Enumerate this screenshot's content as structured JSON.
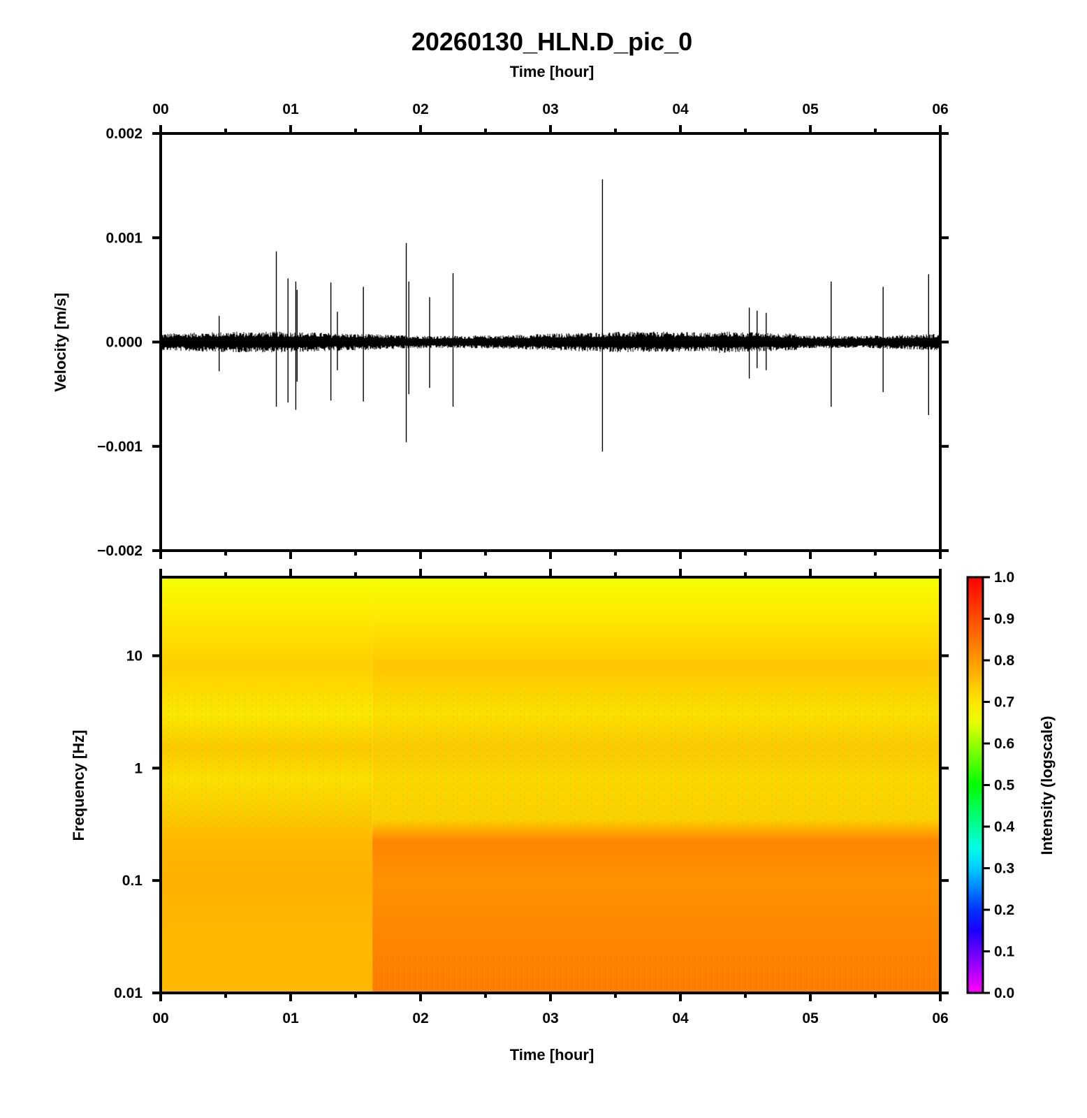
{
  "chart_data": [
    {
      "type": "line",
      "panel": "waveform",
      "title": "20260130_HLN.D_pic_0",
      "xlabel": "Time [hour]",
      "ylabel": "Velocity [m/s]",
      "xlim": [
        0,
        6
      ],
      "ylim": [
        -0.002,
        0.002
      ],
      "x_ticks": [
        "00",
        "01",
        "02",
        "03",
        "04",
        "05",
        "06"
      ],
      "y_ticks": [
        "0.002",
        "0.001",
        "0.000",
        "−0.001",
        "−0.002"
      ],
      "y_tick_values": [
        0.002,
        0.001,
        0.0,
        -0.001,
        -0.002
      ],
      "noise_amplitude": 7e-05,
      "series": [
        {
          "color": "#000000",
          "spikes": [
            {
              "x": 0.45,
              "max": 0.00025,
              "min": -0.00028
            },
            {
              "x": 0.89,
              "max": 0.00087,
              "min": -0.00062
            },
            {
              "x": 0.98,
              "max": 0.00061,
              "min": -0.00058
            },
            {
              "x": 1.04,
              "max": 0.00058,
              "min": -0.00065
            },
            {
              "x": 1.05,
              "max": 0.0005,
              "min": -0.00038
            },
            {
              "x": 1.31,
              "max": 0.00057,
              "min": -0.00056
            },
            {
              "x": 1.36,
              "max": 0.00029,
              "min": -0.00027
            },
            {
              "x": 1.56,
              "max": 0.00053,
              "min": -0.00057
            },
            {
              "x": 1.89,
              "max": 0.00095,
              "min": -0.00096
            },
            {
              "x": 1.91,
              "max": 0.00058,
              "min": -0.0005
            },
            {
              "x": 2.07,
              "max": 0.00043,
              "min": -0.00044
            },
            {
              "x": 2.25,
              "max": 0.00066,
              "min": -0.00062
            },
            {
              "x": 3.4,
              "max": 0.00156,
              "min": -0.00105
            },
            {
              "x": 4.53,
              "max": 0.00033,
              "min": -0.00035
            },
            {
              "x": 4.59,
              "max": 0.0003,
              "min": -0.00025
            },
            {
              "x": 4.66,
              "max": 0.00028,
              "min": -0.00027
            },
            {
              "x": 5.16,
              "max": 0.00058,
              "min": -0.00062
            },
            {
              "x": 5.56,
              "max": 0.00053,
              "min": -0.00048
            },
            {
              "x": 5.91,
              "max": 0.00065,
              "min": -0.0007
            }
          ]
        }
      ]
    },
    {
      "type": "heatmap",
      "panel": "spectrogram",
      "xlabel": "Time [hour]",
      "ylabel": "Frequency [Hz]",
      "xlim": [
        0,
        6
      ],
      "ylim": [
        0.01,
        50
      ],
      "y_scale": "log",
      "x_ticks": [
        "00",
        "01",
        "02",
        "03",
        "04",
        "05",
        "06"
      ],
      "y_ticks": [
        "10",
        "1",
        "0.1",
        "0.01"
      ],
      "y_tick_values": [
        10,
        1,
        0.1,
        0.01
      ],
      "color_change_time": 1.63,
      "intensity_profile": [
        {
          "freq": 50,
          "early": 0.66,
          "late": 0.66
        },
        {
          "freq": 20,
          "early": 0.7,
          "late": 0.7
        },
        {
          "freq": 8,
          "early": 0.73,
          "late": 0.74
        },
        {
          "freq": 3,
          "early": 0.7,
          "late": 0.71
        },
        {
          "freq": 1.5,
          "early": 0.74,
          "late": 0.74
        },
        {
          "freq": 0.8,
          "early": 0.71,
          "late": 0.72
        },
        {
          "freq": 0.35,
          "early": 0.74,
          "late": 0.73
        },
        {
          "freq": 0.22,
          "early": 0.76,
          "late": 0.83
        },
        {
          "freq": 0.1,
          "early": 0.77,
          "late": 0.81
        },
        {
          "freq": 0.03,
          "early": 0.76,
          "late": 0.83
        },
        {
          "freq": 0.01,
          "early": 0.76,
          "late": 0.84
        }
      ],
      "colorbar": {
        "label": "Intensity (logscale)",
        "ticks": [
          "1.0",
          "0.9",
          "0.8",
          "0.7",
          "0.6",
          "0.5",
          "0.4",
          "0.3",
          "0.2",
          "0.1",
          "0.0"
        ],
        "tick_values": [
          1.0,
          0.9,
          0.8,
          0.7,
          0.6,
          0.5,
          0.4,
          0.3,
          0.2,
          0.1,
          0.0
        ],
        "range": [
          0,
          1
        ],
        "colors": [
          "#ff00ff",
          "#0000ff",
          "#00ffff",
          "#00ff00",
          "#ffff00",
          "#ff8000",
          "#ff0000"
        ]
      }
    }
  ]
}
